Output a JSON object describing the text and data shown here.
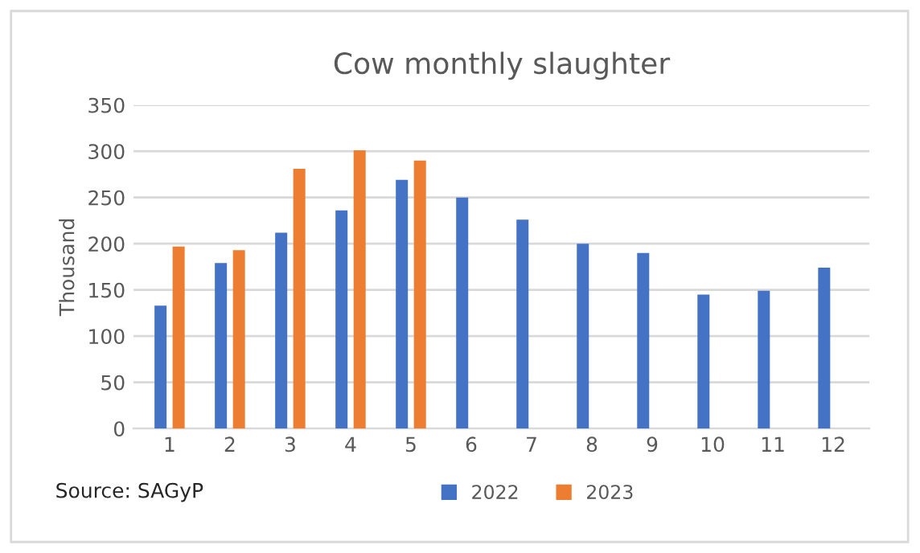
{
  "chart_data": {
    "type": "bar",
    "title": "Cow monthly slaughter",
    "ylabel": "Thousand",
    "categories": [
      "1",
      "2",
      "3",
      "4",
      "5",
      "6",
      "7",
      "8",
      "9",
      "10",
      "11",
      "12"
    ],
    "series": [
      {
        "name": "2022",
        "color": "#4472c4",
        "values": [
          133,
          179,
          212,
          236,
          269,
          250,
          226,
          200,
          190,
          145,
          149,
          174
        ]
      },
      {
        "name": "2023",
        "color": "#ed7d31",
        "values": [
          197,
          193,
          281,
          301,
          290,
          null,
          null,
          null,
          null,
          null,
          null,
          null
        ]
      }
    ],
    "ylim": [
      0,
      350
    ],
    "yticks": [
      0,
      50,
      100,
      150,
      200,
      250,
      300,
      350
    ],
    "grid": "y",
    "legend": "bottom",
    "annotations": [
      "Source: SAGyP"
    ]
  }
}
